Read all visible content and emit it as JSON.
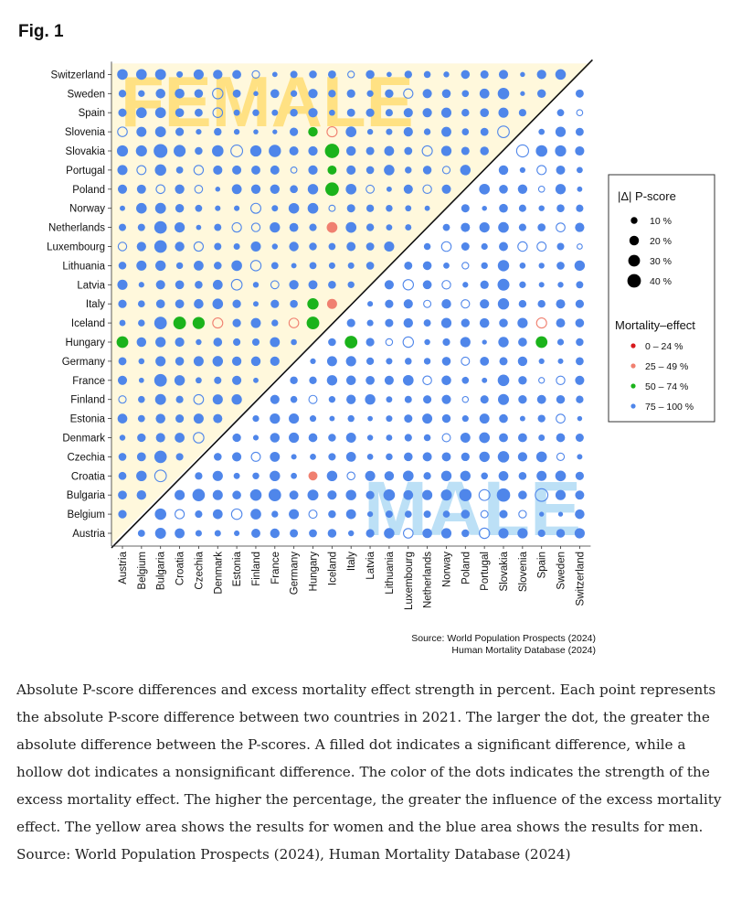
{
  "figure": {
    "label": "Fig. 1"
  },
  "chart_data": {
    "type": "scatter",
    "countries": [
      "Austria",
      "Belgium",
      "Bulgaria",
      "Croatia",
      "Czechia",
      "Denmark",
      "Estonia",
      "Finland",
      "France",
      "Germany",
      "Hungary",
      "Iceland",
      "Italy",
      "Latvia",
      "Lithuania",
      "Luxembourg",
      "Netherlands",
      "Norway",
      "Poland",
      "Portugal",
      "Slovakia",
      "Slovenia",
      "Spain",
      "Sweden",
      "Switzerland"
    ],
    "watermark_upper": "FEMALE",
    "watermark_lower": "MALE",
    "legend": {
      "size_title": "|Δ| P-score",
      "size_entries": [
        {
          "label": "10 %",
          "value": 10
        },
        {
          "label": "20 %",
          "value": 20
        },
        {
          "label": "30 %",
          "value": 30
        },
        {
          "label": "40 %",
          "value": 40
        }
      ],
      "color_title": "Mortality–effect",
      "color_entries": [
        {
          "label": "0 – 24 %",
          "color": "#d7191c"
        },
        {
          "label": "25 – 49 %",
          "color": "#f08070"
        },
        {
          "label": "50 – 74 %",
          "color": "#1bb31b"
        },
        {
          "label": "75 – 100 %",
          "color": "#4f86ea"
        }
      ]
    },
    "region_colors": {
      "female": "#fff8dc",
      "watermark_female": "#ffd966",
      "watermark_male": "#9fd3f2"
    },
    "highlights": [
      {
        "row": "Slovakia",
        "col": "Iceland",
        "delta": 45,
        "effect": "50 – 74 %",
        "sig": true
      },
      {
        "row": "Poland",
        "col": "Iceland",
        "delta": 40,
        "effect": "50 – 74 %",
        "sig": true
      },
      {
        "row": "Portugal",
        "col": "Iceland",
        "delta": 18,
        "effect": "50 – 74 %",
        "sig": true
      },
      {
        "row": "Slovenia",
        "col": "Hungary",
        "delta": 20,
        "effect": "50 – 74 %",
        "sig": true
      },
      {
        "row": "Hungary",
        "col": "Italy",
        "delta": 35,
        "effect": "50 – 74 %",
        "sig": true
      },
      {
        "row": "Hungary",
        "col": "Spain",
        "delta": 30,
        "effect": "50 – 74 %",
        "sig": true
      },
      {
        "row": "Iceland",
        "col": "Croatia",
        "delta": 35,
        "effect": "50 – 74 %",
        "sig": true
      },
      {
        "row": "Iceland",
        "col": "Czechia",
        "delta": 32,
        "effect": "50 – 74 %",
        "sig": true
      },
      {
        "row": "Iceland",
        "col": "Hungary",
        "delta": 35,
        "effect": "50 – 74 %",
        "sig": true
      },
      {
        "row": "Italy",
        "col": "Hungary",
        "delta": 28,
        "effect": "50 – 74 %",
        "sig": true
      },
      {
        "row": "Hungary",
        "col": "Austria",
        "delta": 30,
        "effect": "50 – 74 %",
        "sig": true
      },
      {
        "row": "Netherlands",
        "col": "Iceland",
        "delta": 25,
        "effect": "25 – 49 %",
        "sig": true
      },
      {
        "row": "Italy",
        "col": "Iceland",
        "delta": 22,
        "effect": "25 – 49 %",
        "sig": true
      },
      {
        "row": "Croatia",
        "col": "Hungary",
        "delta": 18,
        "effect": "25 – 49 %",
        "sig": true
      },
      {
        "row": "Slovenia",
        "col": "Iceland",
        "delta": 22,
        "effect": "25 – 49 %",
        "sig": false
      },
      {
        "row": "Iceland",
        "col": "Denmark",
        "delta": 22,
        "effect": "25 – 49 %",
        "sig": false
      },
      {
        "row": "Iceland",
        "col": "Germany",
        "delta": 20,
        "effect": "25 – 49 %",
        "sig": false
      },
      {
        "row": "Iceland",
        "col": "Spain",
        "delta": 22,
        "effect": "25 – 49 %",
        "sig": false
      }
    ],
    "source_lines": [
      "Source: World Population Prospects (2024)",
      "Human Mortality Database (2024)"
    ]
  },
  "caption": "Absolute P-score differences and excess mortality effect strength in percent. Each point represents the absolute P-score difference between two countries in 2021. The larger the dot, the greater the absolute difference between the P-scores. A filled dot indicates a significant difference, while a hollow dot indicates a nonsignificant difference. The color of the dots indicates the strength of the excess mortality effect. The higher the percentage, the greater the influence of the excess mortality effect. The yellow area shows the results for women and the blue area shows the results for men. Source: World Population Prospects (2024), Human Mortality Database (2024)"
}
